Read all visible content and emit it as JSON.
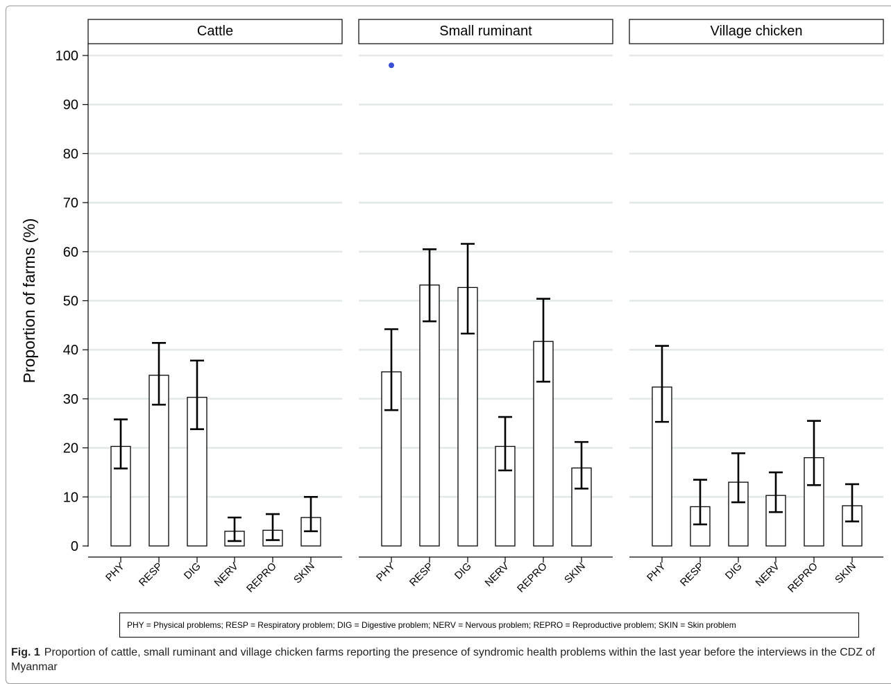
{
  "chart_data": {
    "type": "bar",
    "ylabel": "Proportion of farms (%)",
    "ylim": [
      0,
      100
    ],
    "yticks": [
      0,
      10,
      20,
      30,
      40,
      50,
      60,
      70,
      80,
      90,
      100
    ],
    "grid": true,
    "categories": [
      "PHY",
      "RESP",
      "DIG",
      "NERV",
      "REPRO",
      "SKIN"
    ],
    "panels": [
      {
        "title": "Cattle",
        "values": [
          20.3,
          34.8,
          30.3,
          3.0,
          3.2,
          5.8
        ],
        "ci_low": [
          15.8,
          28.8,
          23.8,
          1.0,
          1.2,
          3.0
        ],
        "ci_high": [
          25.8,
          41.4,
          37.8,
          5.8,
          6.5,
          10.0
        ],
        "outliers": []
      },
      {
        "title": "Small ruminant",
        "values": [
          35.5,
          53.2,
          52.7,
          20.3,
          41.7,
          15.9
        ],
        "ci_low": [
          27.7,
          45.8,
          43.3,
          15.4,
          33.5,
          11.7
        ],
        "ci_high": [
          44.2,
          60.5,
          61.6,
          26.3,
          50.4,
          21.2
        ],
        "outliers": [
          {
            "category": "PHY",
            "value": 98.0
          }
        ]
      },
      {
        "title": "Village chicken",
        "values": [
          32.4,
          8.0,
          13.0,
          10.3,
          18.0,
          8.2
        ],
        "ci_low": [
          25.3,
          4.4,
          8.9,
          6.9,
          12.4,
          5.0
        ],
        "ci_high": [
          40.8,
          13.5,
          18.9,
          15.0,
          25.5,
          12.6
        ],
        "outliers": []
      }
    ],
    "colors": {
      "bar_fill": "#ffffff",
      "bar_edge": "#000000",
      "grid": "#e2e8ea",
      "outlier": "#3b4fd6"
    }
  },
  "legend_text": "PHY = Physical problems; RESP = Respiratory problem; DIG = Digestive problem; NERV = Nervous problem; REPRO = Reproductive problem; SKIN = Skin problem",
  "caption": {
    "label": "Fig. 1",
    "text": "Proportion of cattle, small ruminant and village chicken farms reporting the presence of syndromic health problems within the last year before the interviews in the CDZ of Myanmar"
  }
}
